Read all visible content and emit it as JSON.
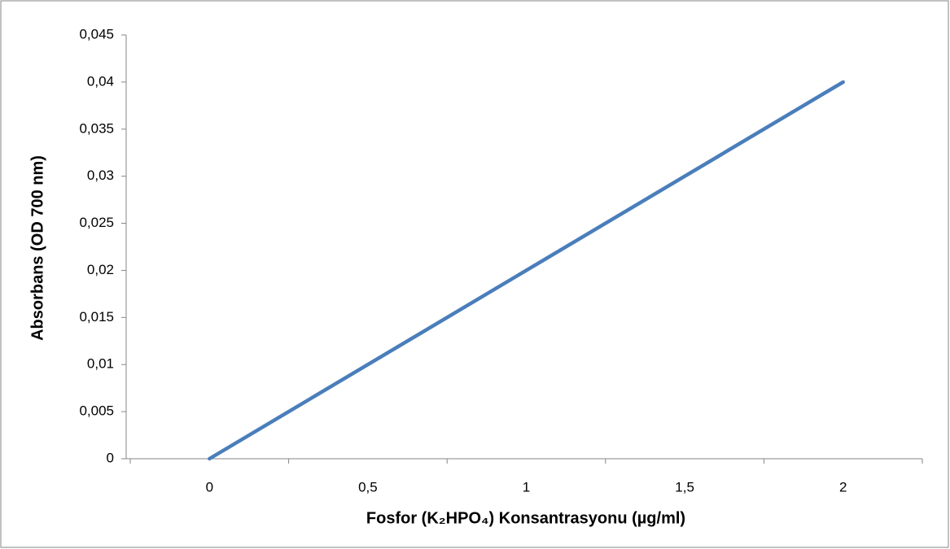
{
  "chart_data": {
    "type": "line",
    "categories": [
      "0",
      "0,5",
      "1",
      "1,5",
      "2"
    ],
    "values": [
      0,
      0.01,
      0.02,
      0.03,
      0.04
    ],
    "color": "#4a7ebb",
    "x_label": "Fosfor (K₂HPO₄) Konsantrasyonu (µg/ml)",
    "y_label": "Absorbans (OD 700 nm)",
    "ylim": [
      0,
      0.045
    ],
    "yticks": [
      0,
      {
        "value": 0.005,
        "label": "0,005"
      },
      {
        "value": 0.01,
        "label": "0,01"
      },
      {
        "value": 0.015,
        "label": "0,015"
      },
      {
        "value": 0.02,
        "label": "0,02"
      },
      {
        "value": 0.025,
        "label": "0,025"
      },
      {
        "value": 0.03,
        "label": "0,03"
      },
      {
        "value": 0.035,
        "label": "0,035"
      },
      {
        "value": 0.04,
        "label": "0,04"
      },
      {
        "value": 0.045,
        "label": "0,045"
      }
    ],
    "grid": false
  }
}
